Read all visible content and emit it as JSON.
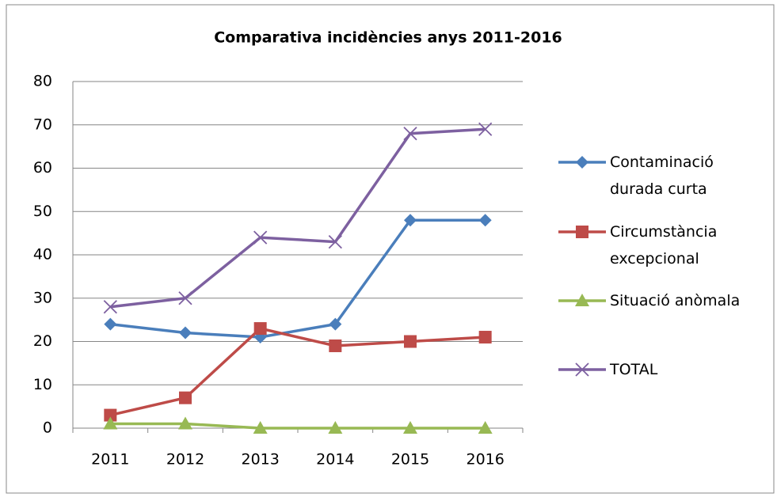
{
  "chart_data": {
    "type": "line",
    "title": "Comparativa incidències anys 2011-2016",
    "categories": [
      "2011",
      "2012",
      "2013",
      "2014",
      "2015",
      "2016"
    ],
    "series": [
      {
        "name": "Contaminació durada curta",
        "color": "#4a7ebb",
        "marker": "diamond",
        "values": [
          24,
          22,
          21,
          24,
          48,
          48
        ]
      },
      {
        "name": "Circumstància excepcional",
        "color": "#be4b48",
        "marker": "square",
        "values": [
          3,
          7,
          23,
          19,
          20,
          21
        ]
      },
      {
        "name": "Situació anòmala",
        "color": "#98b954",
        "marker": "triangle",
        "values": [
          1,
          1,
          0,
          0,
          0,
          0
        ]
      },
      {
        "name": "TOTAL",
        "color": "#7d60a0",
        "marker": "x",
        "values": [
          28,
          30,
          44,
          43,
          68,
          69
        ]
      }
    ],
    "ylim": [
      0,
      80
    ],
    "yticks": [
      0,
      10,
      20,
      30,
      40,
      50,
      60,
      70,
      80
    ],
    "grid": true,
    "legend": "right"
  }
}
